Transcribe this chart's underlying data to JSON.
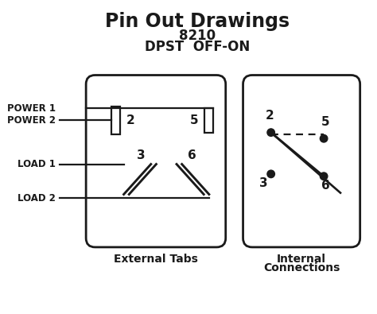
{
  "title": "Pin Out Drawings",
  "subtitle1": "8210",
  "subtitle2": "DPST  OFF-ON",
  "label_external": "External Tabs",
  "label_internal_1": "Internal",
  "label_internal_2": "Connections",
  "bg_color": "#ffffff",
  "line_color": "#1a1a1a",
  "fig_width": 4.74,
  "fig_height": 3.95
}
